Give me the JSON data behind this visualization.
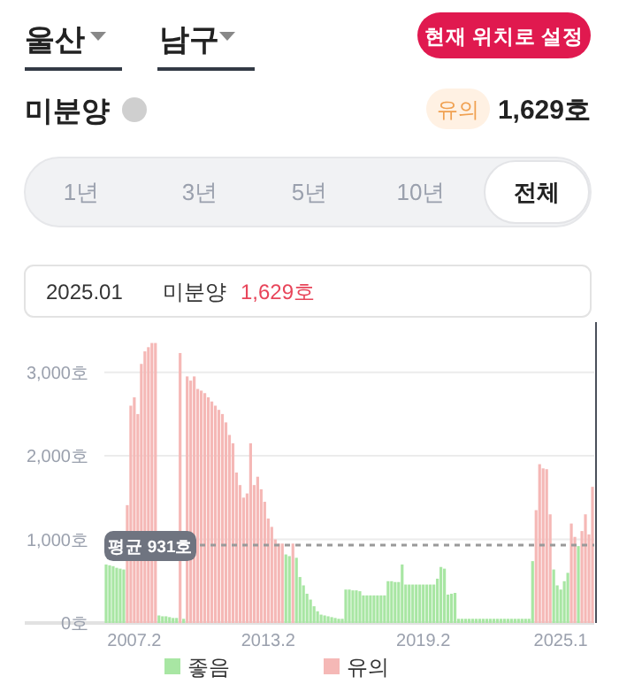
{
  "chart_data": {
    "type": "bar",
    "title": "미분양",
    "grid": "y",
    "legend": "bottom",
    "annotations": [
      "울산",
      "남구",
      "현재 위치로 설정",
      "유의",
      "1,629호",
      "1년",
      "3년",
      "5년",
      "10년",
      "전체",
      "2025.01",
      "미분양",
      "1,629호"
    ],
    "categories": [
      null,
      null,
      null,
      null,
      null,
      null,
      null,
      null,
      "2007.2",
      null,
      null,
      null,
      null,
      null,
      null,
      null,
      null,
      null,
      null,
      null,
      null,
      null,
      null,
      null,
      null,
      null,
      null,
      null,
      null,
      null,
      null,
      null,
      null,
      null,
      null,
      null,
      null,
      null,
      null,
      null,
      null,
      null,
      null,
      null,
      null,
      null,
      "2013.2",
      null,
      null,
      null,
      null,
      null,
      null,
      null,
      null,
      null,
      null,
      null,
      null,
      null,
      null,
      null,
      null,
      null,
      null,
      null,
      null,
      null,
      null,
      null,
      null,
      null,
      null,
      null,
      null,
      null,
      null,
      null,
      null,
      null,
      null,
      null,
      null,
      null,
      null,
      null,
      null,
      null,
      null,
      null,
      "2019.2",
      null,
      null,
      null,
      null,
      null,
      null,
      null,
      null,
      null,
      null,
      null,
      null,
      null,
      null,
      null,
      null,
      null,
      null,
      null,
      null,
      null,
      null,
      null,
      null,
      null,
      null,
      null,
      null,
      null,
      null,
      null,
      null,
      null,
      null,
      null,
      null,
      null,
      null,
      "2025.1",
      null,
      null,
      null,
      null,
      null,
      null,
      null,
      null,
      null
    ],
    "series": [
      {
        "name": "좋음",
        "color": "#a8e6a3",
        "values": [
          700,
          690,
          680,
          660,
          650,
          640,
          null,
          null,
          null,
          null,
          null,
          null,
          null,
          null,
          null,
          90,
          80,
          80,
          70,
          60,
          60,
          null,
          50,
          null,
          null,
          null,
          null,
          null,
          null,
          null,
          null,
          null,
          null,
          null,
          null,
          null,
          null,
          null,
          null,
          null,
          null,
          null,
          null,
          null,
          null,
          null,
          null,
          null,
          null,
          null,
          null,
          820,
          800,
          null,
          780,
          550,
          450,
          350,
          280,
          200,
          140,
          100,
          90,
          80,
          70,
          60,
          50,
          50,
          400,
          400,
          390,
          390,
          380,
          330,
          330,
          330,
          330,
          330,
          330,
          330,
          500,
          500,
          490,
          490,
          700,
          460,
          460,
          460,
          460,
          460,
          460,
          460,
          460,
          460,
          530,
          670,
          650,
          340,
          350,
          360,
          50,
          50,
          50,
          50,
          50,
          50,
          50,
          50,
          50,
          50,
          50,
          50,
          50,
          50,
          50,
          50,
          50,
          50,
          50,
          50,
          50,
          740,
          null,
          null,
          null,
          null,
          null,
          640,
          450,
          400,
          500,
          600,
          null,
          null,
          920,
          null,
          null,
          null,
          null
        ]
      },
      {
        "name": "유의",
        "color": "#f5b8b6",
        "values": [
          null,
          null,
          null,
          null,
          null,
          null,
          1410,
          2600,
          2700,
          2500,
          3100,
          3250,
          3300,
          3350,
          3350,
          null,
          null,
          null,
          null,
          null,
          null,
          3230,
          null,
          2950,
          2900,
          2950,
          2800,
          2780,
          2750,
          2700,
          2650,
          2600,
          2550,
          2500,
          2400,
          2250,
          2150,
          1800,
          1650,
          1500,
          1550,
          2150,
          1650,
          1750,
          1600,
          1450,
          1250,
          1150,
          1000,
          950,
          950,
          null,
          null,
          950,
          null,
          null,
          null,
          null,
          null,
          null,
          null,
          null,
          null,
          null,
          null,
          null,
          null,
          null,
          null,
          null,
          null,
          null,
          null,
          null,
          null,
          null,
          null,
          null,
          null,
          null,
          null,
          null,
          null,
          null,
          null,
          null,
          null,
          null,
          null,
          null,
          null,
          null,
          null,
          null,
          null,
          null,
          null,
          null,
          null,
          null,
          null,
          null,
          null,
          null,
          null,
          null,
          null,
          null,
          null,
          null,
          null,
          null,
          null,
          null,
          null,
          null,
          null,
          null,
          null,
          null,
          null,
          null,
          1350,
          1900,
          1850,
          1840,
          1300,
          null,
          null,
          null,
          null,
          null,
          1190,
          1030,
          null,
          1100,
          1300,
          1060,
          1629
        ]
      }
    ],
    "ylim": [
      0,
      3600
    ],
    "yticks": [
      {
        "value": 0,
        "label": "0호"
      },
      {
        "value": 1000,
        "label": "1,000호"
      },
      {
        "value": 2000,
        "label": "2,000호"
      },
      {
        "value": 3000,
        "label": "3,000호"
      }
    ],
    "ref_lines": [
      {
        "axis": "y",
        "value": 931,
        "label": "평균 931호",
        "color": "#9a9a9a",
        "line_style": "dashed"
      }
    ]
  }
}
